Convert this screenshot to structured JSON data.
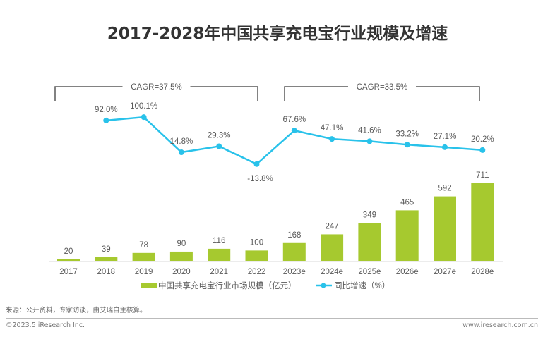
{
  "chart_data": {
    "type": "bar+line",
    "title": "2017-2028年中国共享充电宝行业规模及增速",
    "categories": [
      "2017",
      "2018",
      "2019",
      "2020",
      "2021",
      "2022",
      "2023e",
      "2024e",
      "2025e",
      "2026e",
      "2027e",
      "2028e"
    ],
    "series": [
      {
        "name": "中国共享充电宝行业市场规模（亿元）",
        "type": "bar",
        "color": "#a6c92f",
        "values": [
          20,
          39,
          78,
          90,
          116,
          100,
          168,
          247,
          349,
          465,
          592,
          711
        ]
      },
      {
        "name": "同比增速（%）",
        "type": "line",
        "color": "#29c2ea",
        "values": [
          null,
          92.0,
          100.1,
          14.8,
          29.3,
          -13.8,
          67.6,
          47.1,
          41.6,
          33.2,
          27.1,
          20.2
        ]
      }
    ],
    "annotations": [
      {
        "text": "CAGR=37.5%",
        "from": "2017",
        "to": "2022"
      },
      {
        "text": "CAGR=33.5%",
        "from": "2023e",
        "to": "2028e"
      }
    ],
    "grid": false,
    "legend": "bottom"
  },
  "footer": {
    "source": "来源：公开资料，专家访谈，由艾瑞自主核算。",
    "copyright": "©2023.5 iResearch Inc.",
    "website": "www.iresearch.com.cn"
  }
}
